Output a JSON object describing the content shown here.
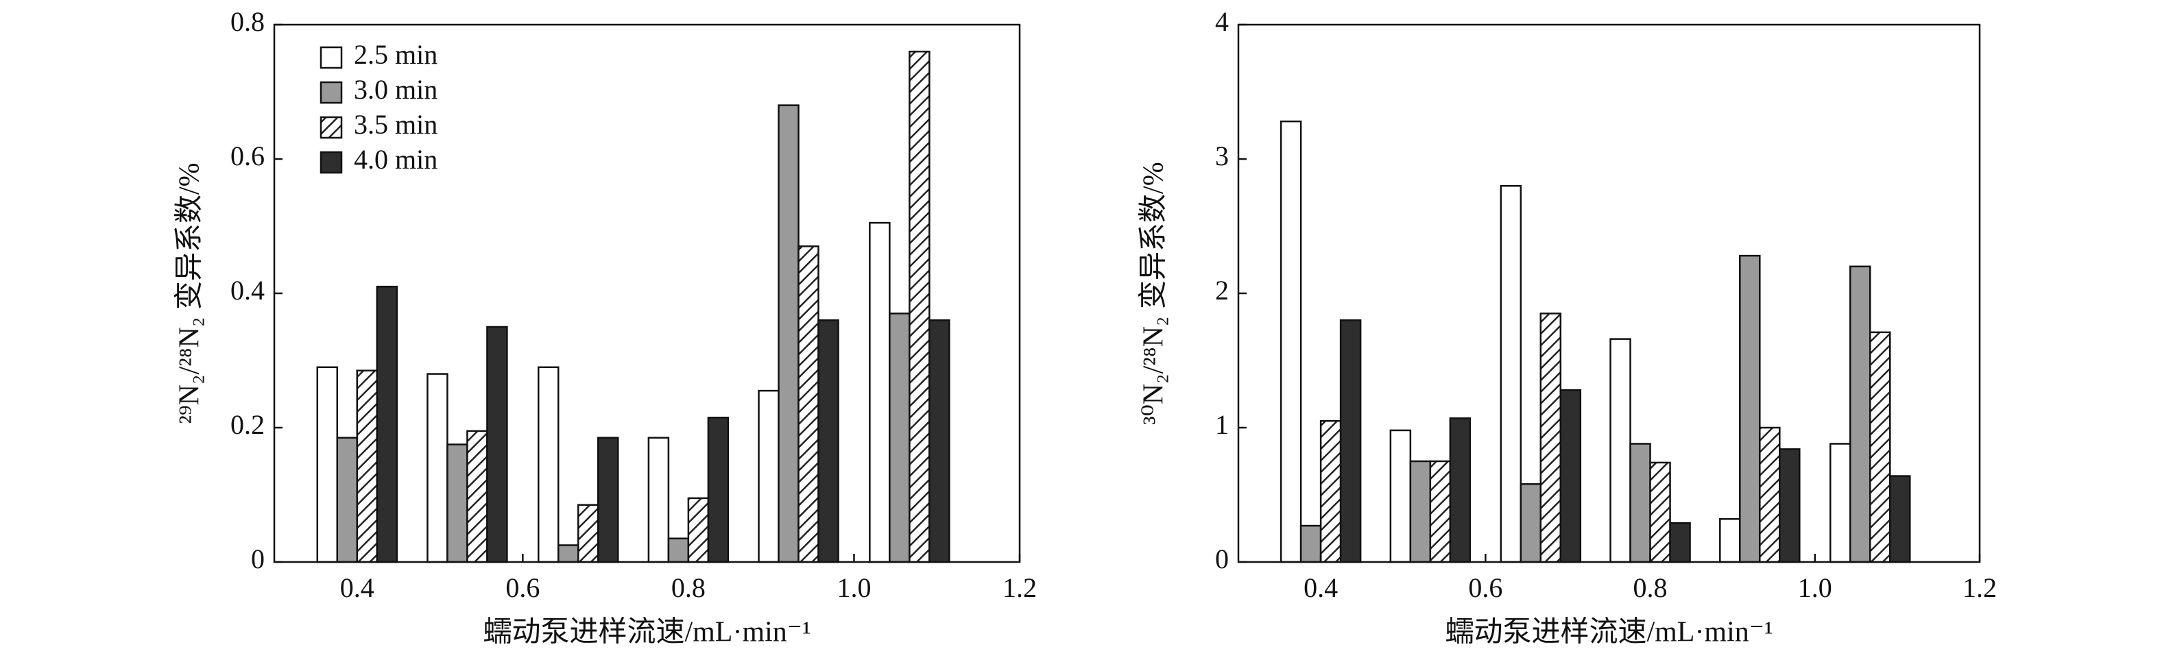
{
  "chart_data": [
    {
      "type": "bar",
      "xlabel": "蠕动泵进样流速/mL·min⁻¹",
      "ylabel": "²⁹N₂/²⁸N₂ 变异系数/%",
      "x": [
        0.4,
        0.533,
        0.667,
        0.8,
        0.933,
        1.067
      ],
      "xlim": [
        0.3,
        1.2
      ],
      "xticks": [
        0.4,
        0.6,
        0.8,
        {
          "value": 1.0,
          "label": "1.0"
        },
        1.2
      ],
      "ylim": [
        0,
        0.8
      ],
      "yticks": [
        0,
        0.2,
        0.4,
        0.6,
        0.8
      ],
      "legend": "upper left",
      "series": [
        {
          "name": "2.5 min",
          "color": "#ffffff",
          "values": [
            0.29,
            0.28,
            0.29,
            0.185,
            0.255,
            0.505
          ]
        },
        {
          "name": "3.0 min",
          "color": "#9a9a9a",
          "values": [
            0.185,
            0.175,
            0.025,
            0.035,
            0.68,
            0.37
          ]
        },
        {
          "name": "3.5 min",
          "color": "#ffffff",
          "pattern": "hatch",
          "values": [
            0.285,
            0.195,
            0.085,
            0.095,
            0.47,
            0.76
          ]
        },
        {
          "name": "4.0 min",
          "color": "#2e2e2e",
          "values": [
            0.41,
            0.35,
            0.185,
            0.215,
            0.36,
            0.36
          ]
        }
      ]
    },
    {
      "type": "bar",
      "xlabel": "蠕动泵进样流速/mL·min⁻¹",
      "ylabel": "³⁰N₂/²⁸N₂ 变异系数/%",
      "x": [
        0.4,
        0.533,
        0.667,
        0.8,
        0.933,
        1.067
      ],
      "xlim": [
        0.3,
        1.2
      ],
      "xticks": [
        0.4,
        0.6,
        0.8,
        {
          "value": 1.0,
          "label": "1.0"
        },
        1.2
      ],
      "ylim": [
        0,
        4
      ],
      "yticks": [
        0,
        1,
        2,
        3,
        4
      ],
      "series": [
        {
          "color": "#ffffff",
          "values": [
            3.28,
            0.98,
            2.8,
            1.66,
            0.32,
            0.88
          ]
        },
        {
          "color": "#9a9a9a",
          "values": [
            0.27,
            0.75,
            0.58,
            0.88,
            2.28,
            2.2
          ]
        },
        {
          "color": "#ffffff",
          "pattern": "hatch",
          "values": [
            1.05,
            0.75,
            1.85,
            0.74,
            1.0,
            1.71
          ]
        },
        {
          "color": "#2e2e2e",
          "values": [
            1.8,
            1.07,
            1.28,
            0.29,
            0.84,
            0.64
          ]
        }
      ]
    }
  ]
}
